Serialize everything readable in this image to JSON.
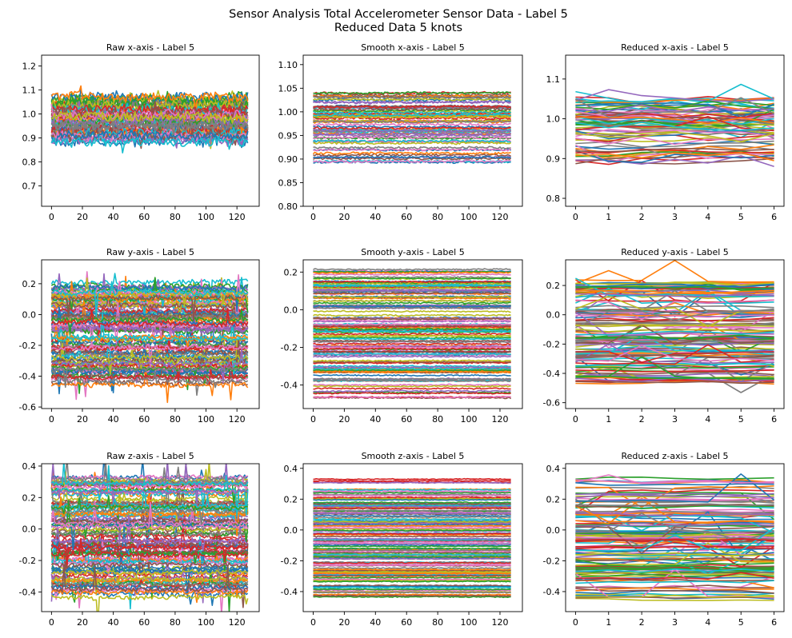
{
  "figure": {
    "title_line1": "Sensor Analysis Total Accelerometer Sensor Data - Label 5",
    "title_line2": "Reduced Data 5 knots"
  },
  "palette": [
    "#1f77b4",
    "#ff7f0e",
    "#2ca02c",
    "#d62728",
    "#9467bd",
    "#8c564b",
    "#e377c2",
    "#7f7f7f",
    "#bcbd22",
    "#17becf"
  ],
  "chart_data": [
    {
      "type": "line",
      "title": "Raw x-axis - Label 5",
      "xlim": [
        -6.4,
        134.4
      ],
      "ylim": [
        0.615,
        1.245
      ],
      "xticks": [
        0,
        20,
        40,
        60,
        80,
        100,
        120
      ],
      "xtick_labels": [
        "0",
        "20",
        "40",
        "60",
        "80",
        "100",
        "120"
      ],
      "yticks": [
        0.7,
        0.8,
        0.9,
        1.0,
        1.1,
        1.2
      ],
      "ytick_labels": [
        "0.7",
        "0.8",
        "0.9",
        "1.0",
        "1.1",
        "1.2"
      ],
      "series_count": 60,
      "points": 128,
      "band": [
        0.88,
        1.07
      ],
      "noise": 0.035,
      "spikes": 0.03
    },
    {
      "type": "line",
      "title": "Smooth x-axis - Label 5",
      "xlim": [
        -6.4,
        134.4
      ],
      "ylim": [
        0.8,
        1.12
      ],
      "xticks": [
        0,
        20,
        40,
        60,
        80,
        100,
        120
      ],
      "xtick_labels": [
        "0",
        "20",
        "40",
        "60",
        "80",
        "100",
        "120"
      ],
      "yticks": [
        0.8,
        0.85,
        0.9,
        0.95,
        1.0,
        1.05,
        1.1
      ],
      "ytick_labels": [
        "0.80",
        "0.85",
        "0.90",
        "0.95",
        "1.00",
        "1.05",
        "1.10"
      ],
      "series_count": 70,
      "points": 128,
      "band": [
        0.89,
        1.04
      ],
      "noise": 0.004,
      "spikes": 0
    },
    {
      "type": "line",
      "title": "Reduced x-axis - Label 5",
      "xlim": [
        -0.3,
        6.3
      ],
      "ylim": [
        0.78,
        1.16
      ],
      "xticks": [
        0,
        1,
        2,
        3,
        4,
        5,
        6
      ],
      "xtick_labels": [
        "0",
        "1",
        "2",
        "3",
        "4",
        "5",
        "6"
      ],
      "yticks": [
        0.8,
        0.9,
        1.0,
        1.1
      ],
      "ytick_labels": [
        "0.8",
        "0.9",
        "1.0",
        "1.1"
      ],
      "series_count": 70,
      "points": 7,
      "band": [
        0.89,
        1.05
      ],
      "noise": 0.02,
      "spikes": 0.1
    },
    {
      "type": "line",
      "title": "Raw y-axis - Label 5",
      "xlim": [
        -6.4,
        134.4
      ],
      "ylim": [
        -0.61,
        0.355
      ],
      "xticks": [
        0,
        20,
        40,
        60,
        80,
        100,
        120
      ],
      "xtick_labels": [
        "0",
        "20",
        "40",
        "60",
        "80",
        "100",
        "120"
      ],
      "yticks": [
        -0.6,
        -0.4,
        -0.2,
        0.0,
        0.2
      ],
      "ytick_labels": [
        "-0.6",
        "-0.4",
        "-0.2",
        "0.0",
        "0.2"
      ],
      "series_count": 110,
      "points": 128,
      "band": [
        -0.46,
        0.22
      ],
      "noise": 0.03,
      "spikes": 0.02
    },
    {
      "type": "line",
      "title": "Smooth y-axis - Label 5",
      "xlim": [
        -6.4,
        134.4
      ],
      "ylim": [
        -0.525,
        0.265
      ],
      "xticks": [
        0,
        20,
        40,
        60,
        80,
        100,
        120
      ],
      "xtick_labels": [
        "0",
        "20",
        "40",
        "60",
        "80",
        "100",
        "120"
      ],
      "yticks": [
        -0.4,
        -0.2,
        0.0,
        0.2
      ],
      "ytick_labels": [
        "-0.4",
        "-0.2",
        "0.0",
        "0.2"
      ],
      "series_count": 130,
      "points": 128,
      "band": [
        -0.47,
        0.22
      ],
      "noise": 0.006,
      "spikes": 0
    },
    {
      "type": "line",
      "title": "Reduced y-axis - Label 5",
      "xlim": [
        -0.3,
        6.3
      ],
      "ylim": [
        -0.64,
        0.375
      ],
      "xticks": [
        0,
        1,
        2,
        3,
        4,
        5,
        6
      ],
      "xtick_labels": [
        "0",
        "1",
        "2",
        "3",
        "4",
        "5",
        "6"
      ],
      "yticks": [
        -0.6,
        -0.4,
        -0.2,
        0.0,
        0.2
      ],
      "ytick_labels": [
        "-0.6",
        "-0.4",
        "-0.2",
        "0.0",
        "0.2"
      ],
      "series_count": 130,
      "points": 7,
      "band": [
        -0.47,
        0.23
      ],
      "noise": 0.025,
      "spikes": 0.06
    },
    {
      "type": "line",
      "title": "Raw z-axis - Label 5",
      "xlim": [
        -6.4,
        134.4
      ],
      "ylim": [
        -0.525,
        0.415
      ],
      "xticks": [
        0,
        20,
        40,
        60,
        80,
        100,
        120
      ],
      "xtick_labels": [
        "0",
        "20",
        "40",
        "60",
        "80",
        "100",
        "120"
      ],
      "yticks": [
        -0.4,
        -0.2,
        0.0,
        0.2,
        0.4
      ],
      "ytick_labels": [
        "-0.4",
        "-0.2",
        "0.0",
        "0.2",
        "0.4"
      ],
      "series_count": 110,
      "points": 128,
      "band": [
        -0.44,
        0.34
      ],
      "noise": 0.025,
      "spikes": 0.02
    },
    {
      "type": "line",
      "title": "Smooth z-axis - Label 5",
      "xlim": [
        -6.4,
        134.4
      ],
      "ylim": [
        -0.53,
        0.43
      ],
      "xticks": [
        0,
        20,
        40,
        60,
        80,
        100,
        120
      ],
      "xtick_labels": [
        "0",
        "20",
        "40",
        "60",
        "80",
        "100",
        "120"
      ],
      "yticks": [
        -0.4,
        -0.2,
        0.0,
        0.2,
        0.4
      ],
      "ytick_labels": [
        "-0.4",
        "-0.2",
        "0.0",
        "0.2",
        "0.4"
      ],
      "series_count": 130,
      "points": 128,
      "band": [
        -0.45,
        0.34
      ],
      "noise": 0.005,
      "spikes": 0
    },
    {
      "type": "line",
      "title": "Reduced z-axis - Label 5",
      "xlim": [
        -0.3,
        6.3
      ],
      "ylim": [
        -0.53,
        0.43
      ],
      "xticks": [
        0,
        1,
        2,
        3,
        4,
        5,
        6
      ],
      "xtick_labels": [
        "0",
        "1",
        "2",
        "3",
        "4",
        "5",
        "6"
      ],
      "yticks": [
        -0.4,
        -0.2,
        0.0,
        0.2,
        0.4
      ],
      "ytick_labels": [
        "-0.4",
        "-0.2",
        "0.0",
        "0.2",
        "0.4"
      ],
      "series_count": 130,
      "points": 7,
      "band": [
        -0.45,
        0.34
      ],
      "noise": 0.02,
      "spikes": 0.06
    }
  ]
}
